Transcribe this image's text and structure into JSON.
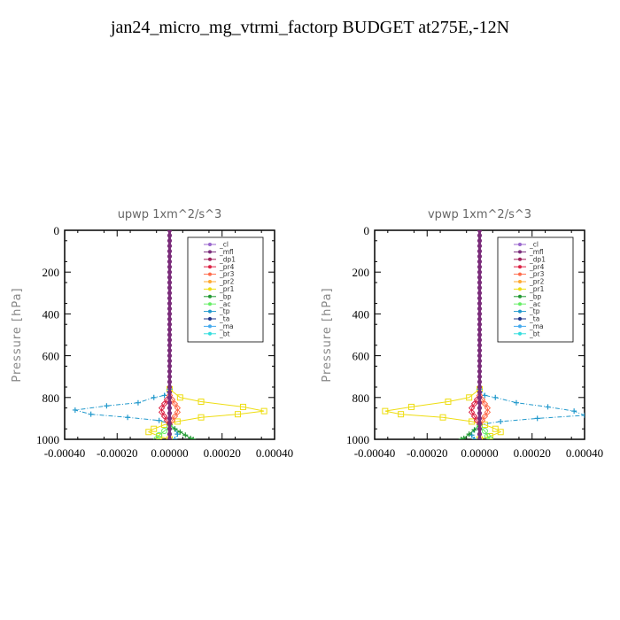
{
  "title": "jan24_micro_mg_vtrmi_factorp  BUDGET at275E,-12N",
  "legend_items": [
    {
      "name": "_cl",
      "color": "#9966cc"
    },
    {
      "name": "_mfl",
      "color": "#7b2d7b"
    },
    {
      "name": "_dp1",
      "color": "#a0205a"
    },
    {
      "name": "_pr4",
      "color": "#dd2244"
    },
    {
      "name": "_pr3",
      "color": "#ff6a4a"
    },
    {
      "name": "_pr2",
      "color": "#ffaa33"
    },
    {
      "name": "_pr1",
      "color": "#eedd11"
    },
    {
      "name": "_bp",
      "color": "#229933"
    },
    {
      "name": "_ac",
      "color": "#66ee66"
    },
    {
      "name": "_tp",
      "color": "#2299cc"
    },
    {
      "name": "_ta",
      "color": "#223388"
    },
    {
      "name": "_ma",
      "color": "#44aaee"
    },
    {
      "name": "_bt",
      "color": "#33dddd"
    }
  ],
  "chart_data": [
    {
      "type": "line",
      "title": "upwp   1xm^2/s^3",
      "ylabel": "Pressure [hPa]",
      "xlim": [
        -0.0004,
        0.0004
      ],
      "ylim": [
        1000,
        0
      ],
      "xticks": [
        "-0.00040",
        "-0.00020",
        "0.00000",
        "0.00020",
        "0.00040"
      ],
      "yticks": [
        "0",
        "200",
        "400",
        "600",
        "800",
        "1000"
      ],
      "legend_position": "top-right",
      "series": [
        {
          "name": "_pr1",
          "points": [
            [
              0,
              760
            ],
            [
              4e-05,
              800
            ],
            [
              0.00012,
              820
            ],
            [
              0.00028,
              845
            ],
            [
              0.00036,
              865
            ],
            [
              0.00026,
              880
            ],
            [
              0.00012,
              895
            ],
            [
              3e-05,
              915
            ],
            [
              -2e-05,
              930
            ],
            [
              -6e-05,
              950
            ],
            [
              -8e-05,
              965
            ],
            [
              -4e-05,
              985
            ],
            [
              0,
              1000
            ]
          ]
        },
        {
          "name": "_tp",
          "points": [
            [
              0,
              760
            ],
            [
              -2e-05,
              790
            ],
            [
              -6e-05,
              800
            ],
            [
              -0.00012,
              825
            ],
            [
              -0.00024,
              840
            ],
            [
              -0.00036,
              860
            ],
            [
              -0.0003,
              880
            ],
            [
              -0.00016,
              895
            ],
            [
              -4e-05,
              910
            ],
            [
              0,
              925
            ],
            [
              2e-05,
              950
            ],
            [
              3e-05,
              975
            ],
            [
              2e-05,
              1000
            ]
          ]
        },
        {
          "name": "_pr4",
          "points": [
            [
              0,
              790
            ],
            [
              -1e-05,
              810
            ],
            [
              -2e-05,
              830
            ],
            [
              -3e-05,
              850
            ],
            [
              -3e-05,
              870
            ],
            [
              -2e-05,
              890
            ],
            [
              -1e-05,
              910
            ],
            [
              0,
              930
            ]
          ]
        },
        {
          "name": "_pr3",
          "points": [
            [
              0,
              790
            ],
            [
              1e-05,
              810
            ],
            [
              2e-05,
              830
            ],
            [
              3e-05,
              850
            ],
            [
              3e-05,
              870
            ],
            [
              2e-05,
              890
            ],
            [
              1e-05,
              910
            ],
            [
              0,
              930
            ]
          ]
        },
        {
          "name": "_bp",
          "points": [
            [
              0,
              930
            ],
            [
              2e-05,
              950
            ],
            [
              4e-05,
              965
            ],
            [
              6e-05,
              980
            ],
            [
              8e-05,
              995
            ],
            [
              9e-05,
              1000
            ]
          ]
        },
        {
          "name": "_ac",
          "points": [
            [
              0,
              940
            ],
            [
              -2e-05,
              960
            ],
            [
              -4e-05,
              980
            ],
            [
              -5e-05,
              1000
            ]
          ]
        },
        {
          "name": "_mfl",
          "points": [
            [
              0,
              0
            ],
            [
              0,
              1000
            ]
          ]
        }
      ]
    },
    {
      "type": "line",
      "title": "vpwp   1xm^2/s^3",
      "ylabel": "Pressure [hPa]",
      "xlim": [
        -0.0004,
        0.0004
      ],
      "ylim": [
        1000,
        0
      ],
      "xticks": [
        "-0.00040",
        "-0.00020",
        "0.00000",
        "0.00020",
        "0.00040"
      ],
      "yticks": [
        "0",
        "200",
        "400",
        "600",
        "800",
        "1000"
      ],
      "legend_position": "top-right",
      "series": [
        {
          "name": "_pr1",
          "points": [
            [
              0,
              760
            ],
            [
              -4e-05,
              800
            ],
            [
              -0.00012,
              820
            ],
            [
              -0.00026,
              845
            ],
            [
              -0.00036,
              865
            ],
            [
              -0.0003,
              880
            ],
            [
              -0.00014,
              895
            ],
            [
              -3e-05,
              915
            ],
            [
              2e-05,
              930
            ],
            [
              6e-05,
              950
            ],
            [
              8e-05,
              965
            ],
            [
              4e-05,
              985
            ],
            [
              0,
              1000
            ]
          ]
        },
        {
          "name": "_tp",
          "points": [
            [
              0,
              760
            ],
            [
              2e-05,
              790
            ],
            [
              6e-05,
              800
            ],
            [
              0.00014,
              825
            ],
            [
              0.00026,
              845
            ],
            [
              0.00036,
              865
            ],
            [
              0.0004,
              885
            ],
            [
              0.00022,
              900
            ],
            [
              8e-05,
              915
            ],
            [
              0,
              930
            ],
            [
              -2e-05,
              955
            ],
            [
              -3e-05,
              980
            ],
            [
              -2e-05,
              1000
            ]
          ]
        },
        {
          "name": "_pr4",
          "points": [
            [
              0,
              790
            ],
            [
              -1e-05,
              810
            ],
            [
              -2e-05,
              830
            ],
            [
              -3e-05,
              850
            ],
            [
              -3e-05,
              870
            ],
            [
              -2e-05,
              890
            ],
            [
              -1e-05,
              910
            ],
            [
              0,
              930
            ]
          ]
        },
        {
          "name": "_pr3",
          "points": [
            [
              0,
              790
            ],
            [
              1e-05,
              810
            ],
            [
              2e-05,
              830
            ],
            [
              3e-05,
              850
            ],
            [
              3e-05,
              870
            ],
            [
              2e-05,
              890
            ],
            [
              1e-05,
              910
            ],
            [
              0,
              930
            ]
          ]
        },
        {
          "name": "_bp",
          "points": [
            [
              0,
              930
            ],
            [
              -2e-05,
              955
            ],
            [
              -4e-05,
              975
            ],
            [
              -6e-05,
              995
            ],
            [
              -7e-05,
              1000
            ]
          ]
        },
        {
          "name": "_ac",
          "points": [
            [
              0,
              940
            ],
            [
              2e-05,
              960
            ],
            [
              3e-05,
              985
            ],
            [
              4e-05,
              1000
            ]
          ]
        },
        {
          "name": "_mfl",
          "points": [
            [
              0,
              0
            ],
            [
              0,
              1000
            ]
          ]
        }
      ]
    }
  ]
}
